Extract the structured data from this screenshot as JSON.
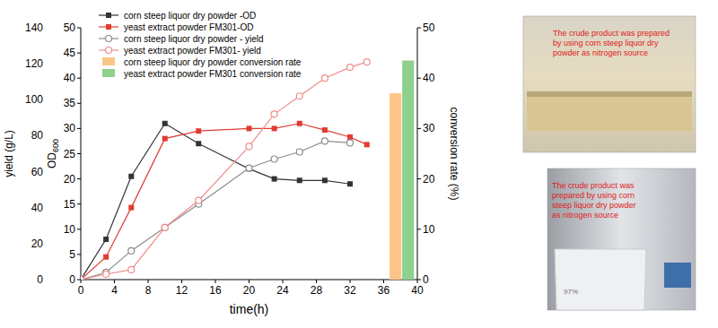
{
  "chart_data": {
    "type": "line",
    "xlabel": "time(h)",
    "ylabel": "yield (g/L)",
    "y2label": "OD600",
    "y3label": "conversion rate (%)",
    "xlim": [
      0,
      40
    ],
    "xticks": [
      0,
      4,
      8,
      12,
      16,
      20,
      24,
      28,
      32,
      36,
      40
    ],
    "ylim": [
      0,
      140
    ],
    "yticks": [
      0,
      20,
      40,
      60,
      80,
      100,
      120,
      140
    ],
    "y2lim": [
      0,
      50
    ],
    "y2ticks": [
      0,
      5,
      10,
      15,
      20,
      25,
      30,
      35,
      40,
      45,
      50
    ],
    "y3lim": [
      0,
      50
    ],
    "y3ticks": [
      0,
      10,
      20,
      30,
      40,
      50
    ],
    "grid": false,
    "legend": "upper left",
    "series": [
      {
        "name": "corn steep liquor dry powder -OD",
        "type": "line",
        "marker": "square",
        "line_style": "solid",
        "color": "#333333",
        "axis": "y2",
        "x": [
          0,
          3,
          6,
          10,
          14,
          20,
          23,
          26,
          29,
          32
        ],
        "values": [
          0,
          8,
          20.5,
          31,
          27,
          22,
          20,
          19.7,
          19.7,
          19
        ]
      },
      {
        "name": "yeast extract powder FM301-OD",
        "type": "line",
        "marker": "square",
        "line_style": "solid",
        "color": "#e03c31",
        "axis": "y2",
        "x": [
          0,
          3,
          6,
          10,
          14,
          20,
          23,
          26,
          29,
          32,
          34
        ],
        "values": [
          0,
          4.5,
          14.3,
          28,
          29.5,
          30,
          30,
          31,
          29.7,
          28.3,
          26.8
        ]
      },
      {
        "name": "corn steep liquor dry powder - yield",
        "type": "line",
        "marker": "circle-open",
        "line_style": "solid",
        "color": "#8c8c8c",
        "axis": "y",
        "x": [
          0,
          3,
          6,
          10,
          14,
          20,
          23,
          26,
          29,
          32
        ],
        "values": [
          0,
          4,
          16,
          29,
          42,
          62,
          67,
          71,
          77,
          76
        ]
      },
      {
        "name": "yeast extract powder FM301- yield",
        "type": "line",
        "marker": "circle-open",
        "line_style": "solid",
        "color": "#f08c8c",
        "axis": "y",
        "x": [
          0,
          3,
          6,
          10,
          14,
          20,
          23,
          26,
          29,
          32,
          34
        ],
        "values": [
          0,
          3,
          5.5,
          29,
          44,
          74,
          92,
          102,
          112,
          118,
          121
        ]
      },
      {
        "name": "corn steep liquor dry powder conversion rate",
        "type": "bar",
        "color": "#fbc58a",
        "axis": "y3",
        "x": [
          37.4
        ],
        "values": [
          37
        ]
      },
      {
        "name": "yeast extract powder FM301 conversion rate",
        "type": "bar",
        "color": "#8ed08e",
        "axis": "y3",
        "x": [
          38.9
        ],
        "values": [
          43.5
        ]
      }
    ]
  },
  "photos": [
    {
      "caption": "The crude product was prepared by using corn steep liquor dry powder as nitrogen source"
    },
    {
      "caption": "The crude product was prepared by using corn steep liquor dry powder as nitrogen source",
      "label": "97%"
    }
  ]
}
